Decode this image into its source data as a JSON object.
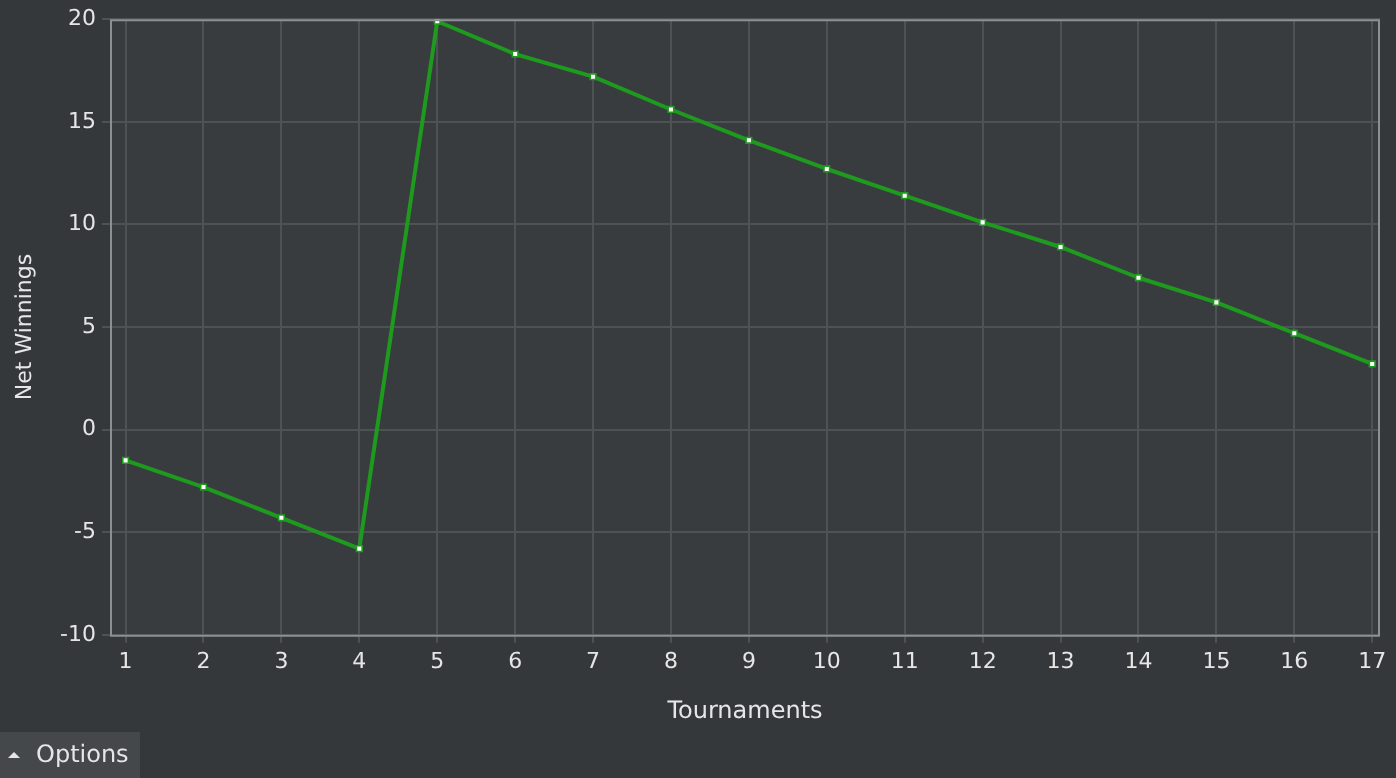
{
  "chart_data": {
    "type": "line",
    "xlabel": "Tournaments",
    "ylabel": "Net Winnings",
    "x": [
      1,
      2,
      3,
      4,
      5,
      6,
      7,
      8,
      9,
      10,
      11,
      12,
      13,
      14,
      15,
      16,
      17
    ],
    "series": [
      {
        "color": "#1e9a1e",
        "values": [
          -1.5,
          -2.8,
          -4.3,
          -5.8,
          19.9,
          18.3,
          17.2,
          15.6,
          14.1,
          12.7,
          11.4,
          10.1,
          8.9,
          7.4,
          6.2,
          4.7,
          3.2
        ]
      }
    ],
    "xlim": [
      0.8,
      17.1
    ],
    "xticks": [
      1,
      2,
      3,
      4,
      5,
      6,
      7,
      8,
      9,
      10,
      11,
      12,
      13,
      14,
      15,
      16,
      17
    ],
    "ylim": [
      -10,
      20
    ],
    "yticks": [
      -10,
      -5,
      0,
      5,
      10,
      15,
      20
    ],
    "grid": true,
    "marker": "square",
    "line_style": "solid",
    "annotations": [
      "Options"
    ]
  }
}
